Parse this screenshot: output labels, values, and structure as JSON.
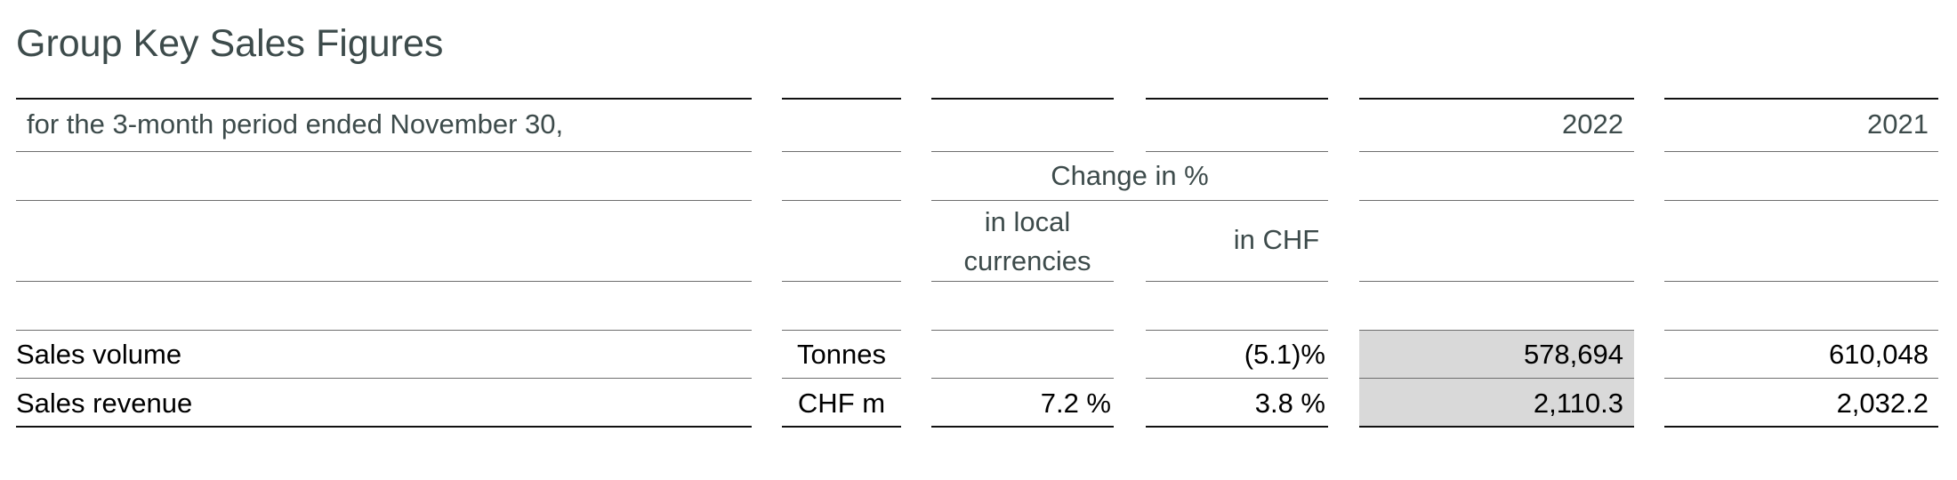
{
  "title": "Group Key Sales Figures",
  "table": {
    "period_label": "for the 3-month period ended November 30,",
    "years": [
      "2022",
      "2021"
    ],
    "change_label": "Change in %",
    "change_columns": [
      "in local currencies",
      "in CHF"
    ],
    "rows": [
      {
        "label": "Sales volume",
        "unit": "Tonnes",
        "change_chf": "(5.1)%",
        "value_2022": "578,694",
        "value_2021": "610,048"
      },
      {
        "label": "Sales revenue",
        "unit": "CHF m",
        "change_local": "7.2 %",
        "change_chf": "3.8 %",
        "value_2022": "2,110.3",
        "value_2021": "2,032.2"
      }
    ]
  }
}
